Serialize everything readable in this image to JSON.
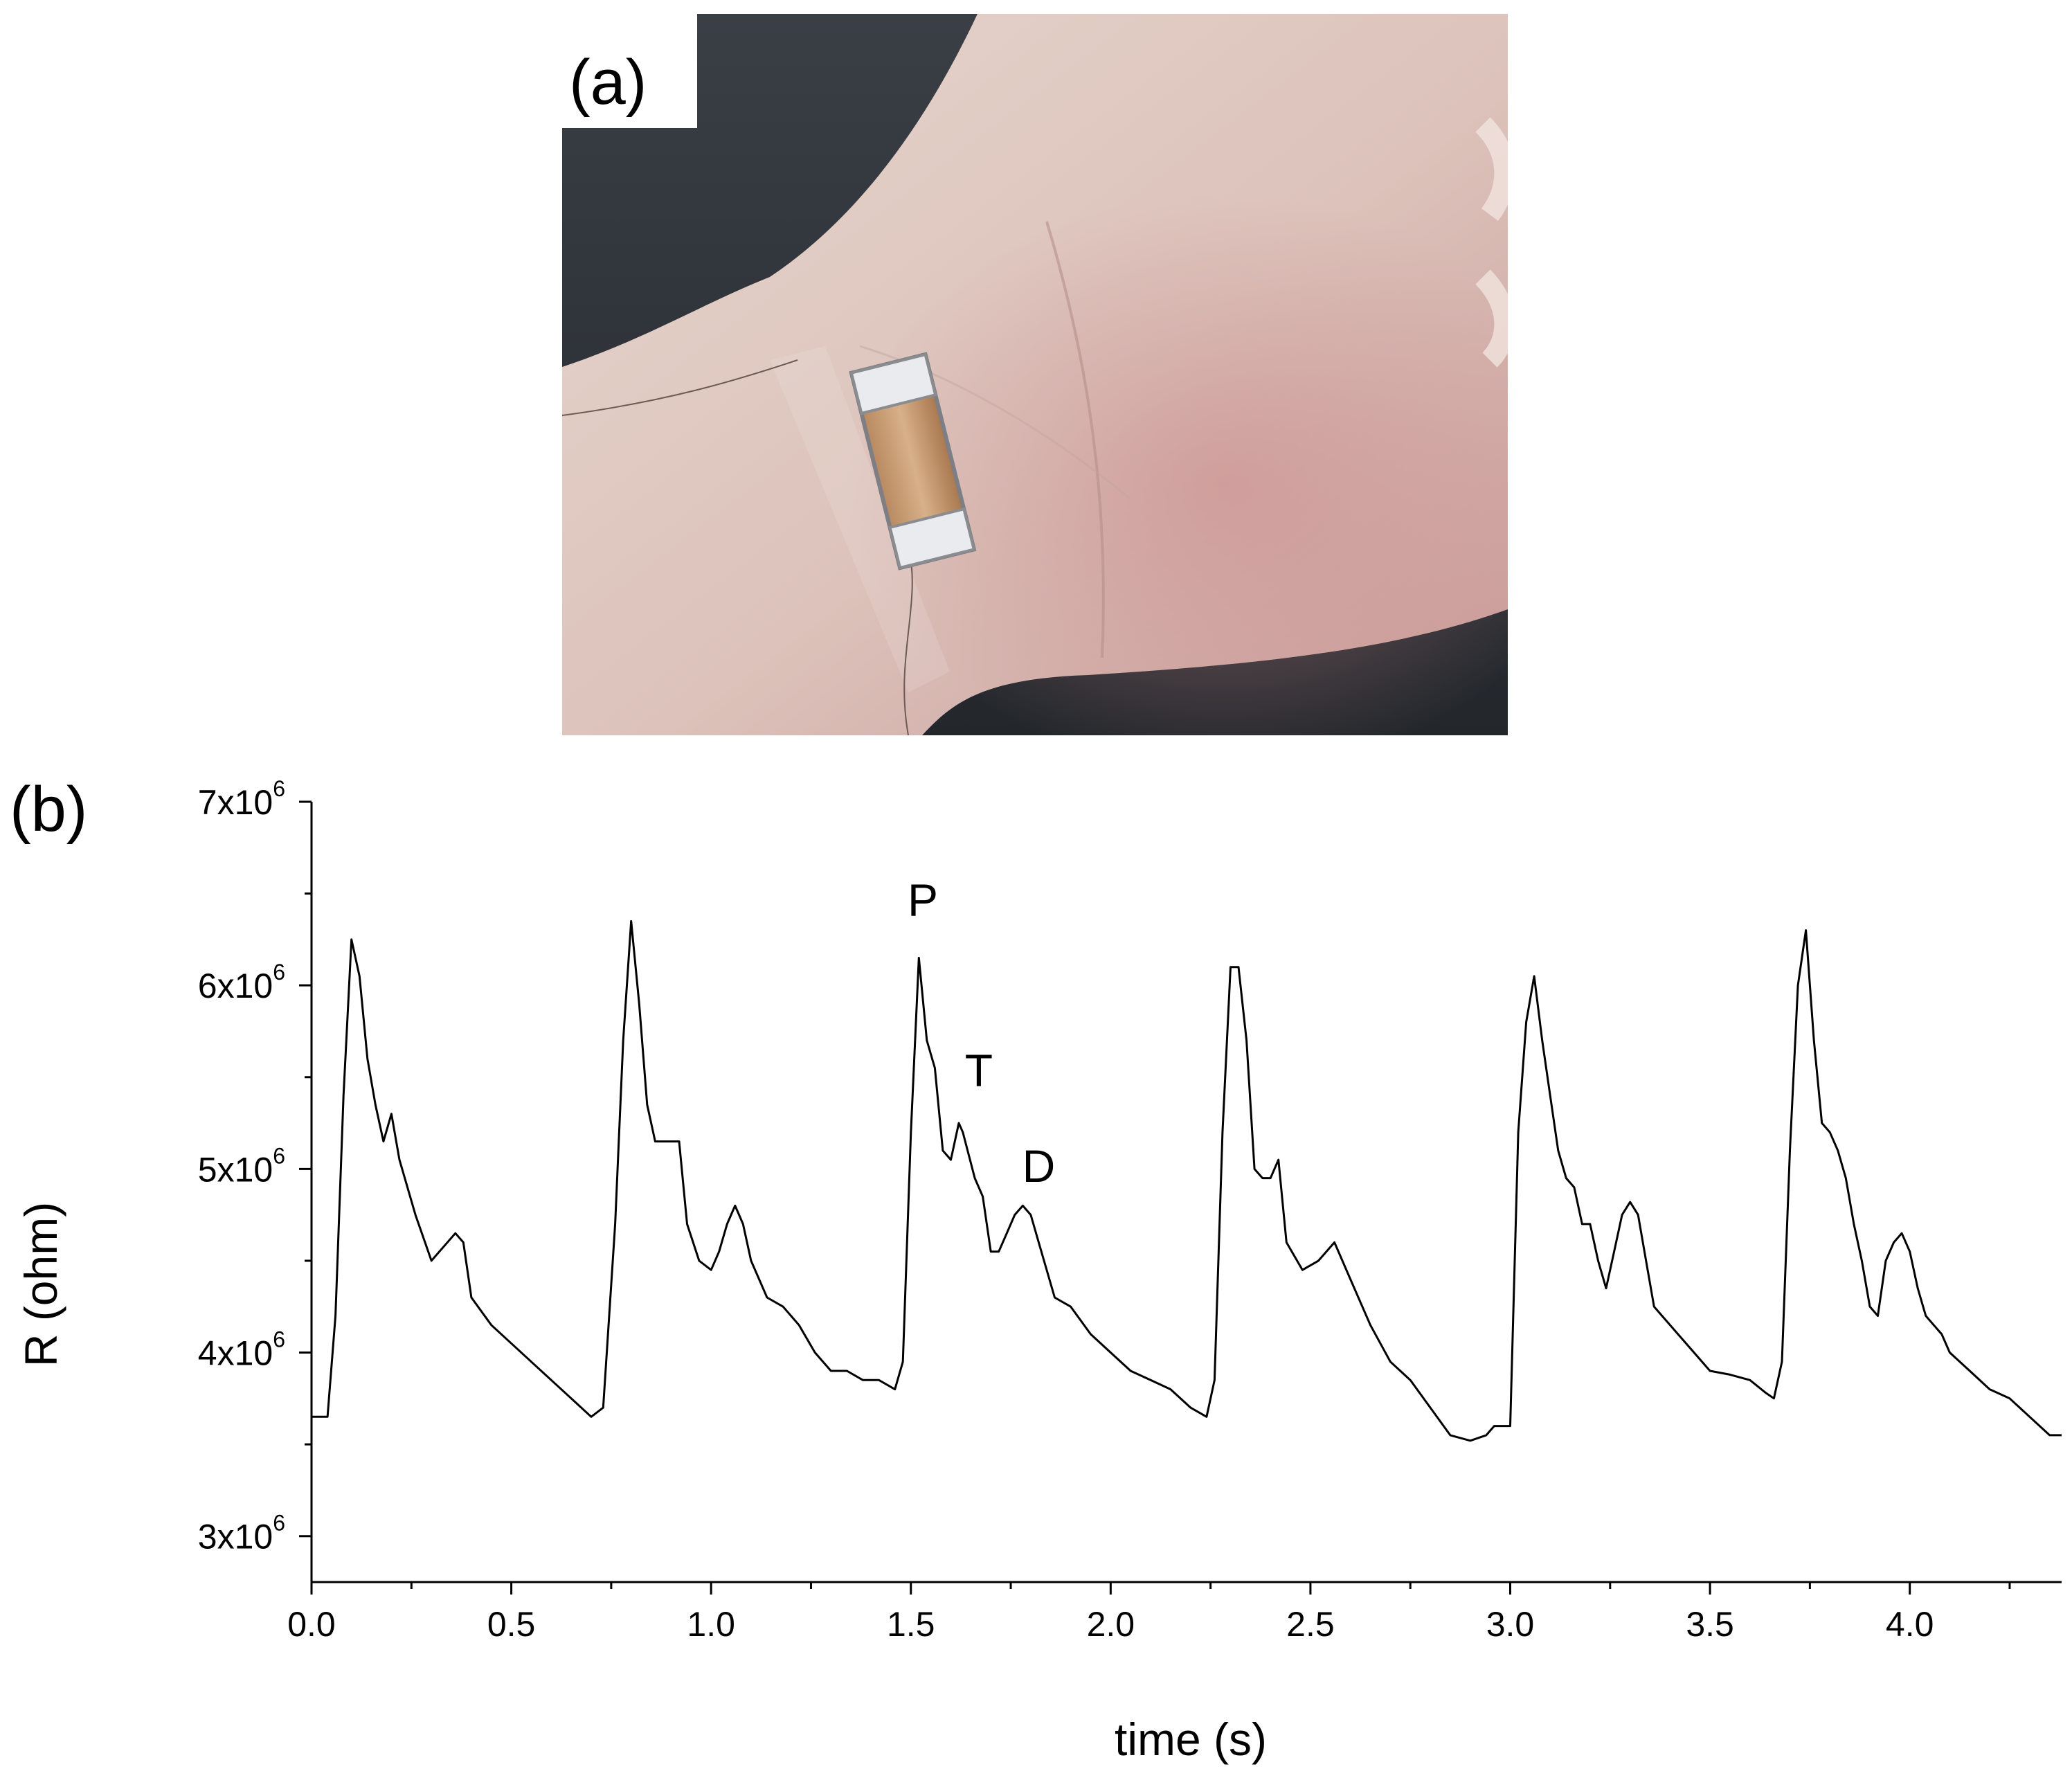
{
  "panel_a": {
    "label": "(a)"
  },
  "panel_b": {
    "label": "(b)"
  },
  "chart_data": {
    "type": "line",
    "xlabel": "time (s)",
    "ylabel": "R (ohm)",
    "xlim": [
      0.0,
      4.38
    ],
    "ylim": [
      2750000,
      7000000
    ],
    "x_ticks": [
      0.0,
      0.5,
      1.0,
      1.5,
      2.0,
      2.5,
      3.0,
      3.5,
      4.0
    ],
    "x_tick_labels": [
      "0.0",
      "0.5",
      "1.0",
      "1.5",
      "2.0",
      "2.5",
      "3.0",
      "3.5",
      "4.0"
    ],
    "y_ticks": [
      3000000,
      4000000,
      5000000,
      6000000,
      7000000
    ],
    "y_tick_labels": [
      {
        "mantissa": "3x10",
        "exp": "6"
      },
      {
        "mantissa": "4x10",
        "exp": "6"
      },
      {
        "mantissa": "5x10",
        "exp": "6"
      },
      {
        "mantissa": "6x10",
        "exp": "6"
      },
      {
        "mantissa": "7x10",
        "exp": "6"
      }
    ],
    "grid": false,
    "annotations": [
      {
        "text": "P",
        "x": 1.53,
        "y": 6380000
      },
      {
        "text": "T",
        "x": 1.67,
        "y": 5450000
      },
      {
        "text": "D",
        "x": 1.82,
        "y": 4930000
      }
    ],
    "series": [
      {
        "x": [
          0.0,
          0.04,
          0.06,
          0.08,
          0.1,
          0.12,
          0.14,
          0.16,
          0.18,
          0.2,
          0.22,
          0.26,
          0.3,
          0.32,
          0.36,
          0.38,
          0.4,
          0.45,
          0.5,
          0.55,
          0.6,
          0.65,
          0.7,
          0.73,
          0.76,
          0.78,
          0.8,
          0.82,
          0.84,
          0.86,
          0.88,
          0.92,
          0.94,
          0.97,
          1.0,
          1.02,
          1.04,
          1.06,
          1.08,
          1.1,
          1.14,
          1.18,
          1.22,
          1.26,
          1.3,
          1.34,
          1.38,
          1.42,
          1.46,
          1.48,
          1.5,
          1.52,
          1.54,
          1.56,
          1.58,
          1.6,
          1.62,
          1.63,
          1.66,
          1.68,
          1.7,
          1.72,
          1.74,
          1.76,
          1.78,
          1.8,
          1.82,
          1.86,
          1.9,
          1.95,
          2.0,
          2.05,
          2.1,
          2.15,
          2.2,
          2.24,
          2.26,
          2.28,
          2.3,
          2.32,
          2.34,
          2.36,
          2.38,
          2.4,
          2.42,
          2.44,
          2.48,
          2.52,
          2.56,
          2.6,
          2.65,
          2.7,
          2.75,
          2.8,
          2.85,
          2.9,
          2.94,
          2.96,
          3.0,
          3.02,
          3.04,
          3.06,
          3.08,
          3.1,
          3.12,
          3.14,
          3.16,
          3.18,
          3.2,
          3.22,
          3.24,
          3.26,
          3.28,
          3.3,
          3.32,
          3.34,
          3.36,
          3.38,
          3.42,
          3.46,
          3.5,
          3.55,
          3.6,
          3.64,
          3.66,
          3.68,
          3.7,
          3.72,
          3.74,
          3.76,
          3.78,
          3.8,
          3.82,
          3.84,
          3.86,
          3.88,
          3.9,
          3.92,
          3.94,
          3.96,
          3.98,
          4.0,
          4.02,
          4.04,
          4.06,
          4.08,
          4.1,
          4.15,
          4.2,
          4.25,
          4.3,
          4.35,
          4.38
        ],
        "values": [
          3650000,
          3650000,
          4200000,
          5400000,
          6250000,
          6050000,
          5600000,
          5350000,
          5150000,
          5300000,
          5050000,
          4750000,
          4500000,
          4550000,
          4650000,
          4600000,
          4300000,
          4150000,
          4050000,
          3950000,
          3850000,
          3750000,
          3650000,
          3700000,
          4700000,
          5700000,
          6350000,
          5900000,
          5350000,
          5150000,
          5150000,
          5150000,
          4700000,
          4500000,
          4450000,
          4550000,
          4700000,
          4800000,
          4700000,
          4500000,
          4300000,
          4250000,
          4150000,
          4000000,
          3900000,
          3900000,
          3850000,
          3850000,
          3800000,
          3950000,
          5200000,
          6150000,
          5700000,
          5550000,
          5100000,
          5050000,
          5250000,
          5200000,
          4950000,
          4850000,
          4550000,
          4550000,
          4650000,
          4750000,
          4800000,
          4750000,
          4600000,
          4300000,
          4250000,
          4100000,
          4000000,
          3900000,
          3850000,
          3800000,
          3700000,
          3650000,
          3850000,
          5200000,
          6100000,
          6100000,
          5700000,
          5000000,
          4950000,
          4950000,
          5050000,
          4600000,
          4450000,
          4500000,
          4600000,
          4400000,
          4150000,
          3950000,
          3850000,
          3700000,
          3550000,
          3520000,
          3550000,
          3600000,
          3600000,
          5200000,
          5800000,
          6050000,
          5700000,
          5400000,
          5100000,
          4950000,
          4900000,
          4700000,
          4700000,
          4500000,
          4350000,
          4550000,
          4750000,
          4820000,
          4750000,
          4500000,
          4250000,
          4200000,
          4100000,
          4000000,
          3900000,
          3880000,
          3850000,
          3780000,
          3750000,
          3950000,
          5100000,
          6000000,
          6300000,
          5700000,
          5250000,
          5200000,
          5100000,
          4950000,
          4700000,
          4500000,
          4250000,
          4200000,
          4500000,
          4600000,
          4650000,
          4550000,
          4350000,
          4200000,
          4150000,
          4100000,
          4000000,
          3900000,
          3800000,
          3750000,
          3650000,
          3550000,
          3550000
        ]
      }
    ]
  }
}
